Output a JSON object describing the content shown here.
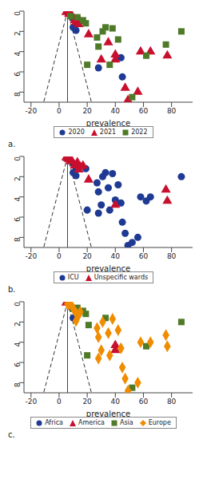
{
  "chart_data": [
    {
      "type": "scatter",
      "title": "a.",
      "x_label": "prevalence",
      "xlim": [
        -25,
        95
      ],
      "xticks": [
        -20,
        0,
        20,
        40,
        60,
        80
      ],
      "ylim": [
        0,
        9
      ],
      "yticks": [
        0,
        2,
        4,
        6,
        8
      ],
      "legend": "bottom",
      "series": [
        {
          "name": "2020",
          "color": "#1f3a93",
          "marker": "circle",
          "x": [
            6,
            10,
            10,
            12,
            44,
            45,
            28
          ],
          "y": [
            0.2,
            0.7,
            1.6,
            1.9,
            4.6,
            6.5,
            5.6
          ]
        },
        {
          "name": "2021",
          "color": "#c8102e",
          "marker": "triangle",
          "x": [
            5,
            7,
            9,
            11,
            12,
            15,
            14,
            21,
            30,
            35,
            40,
            47,
            49,
            56,
            58,
            65,
            77,
            40
          ],
          "y": [
            0.1,
            0.3,
            0.4,
            0.9,
            1.1,
            1.0,
            1.3,
            2.3,
            4.8,
            3.1,
            4.3,
            7.6,
            8.8,
            8.0,
            4.0,
            4.0,
            4.4,
            4.8
          ]
        },
        {
          "name": "2022",
          "color": "#4f7a28",
          "marker": "square",
          "x": [
            8,
            13,
            17,
            19,
            20,
            27,
            28,
            31,
            33,
            36,
            38,
            42,
            52,
            62,
            76,
            87
          ],
          "y": [
            0.5,
            0.6,
            0.9,
            1.2,
            5.3,
            2.6,
            3.5,
            2.0,
            1.6,
            5.3,
            1.7,
            2.8,
            8.5,
            4.4,
            3.3,
            2.0
          ]
        }
      ],
      "reference_lines": [
        {
          "x": [
            6,
            6
          ],
          "y": [
            0,
            9
          ],
          "line_style": "solid",
          "color": "#444444"
        },
        {
          "x": [
            6,
            -11
          ],
          "y": [
            0,
            9
          ],
          "line_style": "dashed",
          "color": "#333333"
        },
        {
          "x": [
            6,
            23
          ],
          "y": [
            0,
            9
          ],
          "line_style": "dashed",
          "color": "#333333"
        }
      ]
    },
    {
      "type": "scatter",
      "title": "b.",
      "x_label": "prevalence",
      "xlim": [
        -25,
        95
      ],
      "xticks": [
        -20,
        0,
        20,
        40,
        60,
        80
      ],
      "ylim": [
        0,
        9
      ],
      "yticks": [
        0,
        2,
        4,
        6,
        8
      ],
      "legend": "bottom",
      "series": [
        {
          "name": "ICU",
          "color": "#1f3a93",
          "marker": "circle",
          "x": [
            10,
            12,
            19,
            10,
            12,
            20,
            27,
            28,
            30,
            31,
            33,
            35,
            36,
            38,
            40,
            42,
            44,
            45,
            47,
            49,
            52,
            56,
            58,
            62,
            65,
            87,
            28
          ],
          "y": [
            0.7,
            1.1,
            1.2,
            1.6,
            1.9,
            5.3,
            2.6,
            3.5,
            4.8,
            2.0,
            1.6,
            3.1,
            5.3,
            1.7,
            4.3,
            2.8,
            4.6,
            6.5,
            7.6,
            8.8,
            8.5,
            8.0,
            4.0,
            4.4,
            4.0,
            2.0,
            5.6
          ]
        },
        {
          "name": "Unspecific wards",
          "color": "#c8102e",
          "marker": "triangle",
          "x": [
            5,
            6,
            7,
            8,
            9,
            11,
            13,
            15,
            17,
            14,
            21,
            76,
            77,
            40
          ],
          "y": [
            0.1,
            0.2,
            0.3,
            0.5,
            0.4,
            0.9,
            0.6,
            1.0,
            0.9,
            1.3,
            2.3,
            3.3,
            4.4,
            4.8
          ]
        }
      ],
      "reference_lines": [
        {
          "x": [
            6,
            6
          ],
          "y": [
            0,
            9
          ],
          "line_style": "solid",
          "color": "#444444"
        },
        {
          "x": [
            6,
            -11
          ],
          "y": [
            0,
            9
          ],
          "line_style": "dashed",
          "color": "#333333"
        },
        {
          "x": [
            6,
            23
          ],
          "y": [
            0,
            9
          ],
          "line_style": "dashed",
          "color": "#333333"
        }
      ]
    },
    {
      "type": "scatter",
      "title": "c.",
      "x_label": "prevalence",
      "xlim": [
        -25,
        95
      ],
      "xticks": [
        -20,
        0,
        20,
        40,
        60,
        80
      ],
      "ylim": [
        0,
        9
      ],
      "yticks": [
        0,
        2,
        4,
        6,
        8
      ],
      "legend": "bottom",
      "series": [
        {
          "name": "Africa",
          "color": "#1f3a93",
          "marker": "circle",
          "x": [
            8,
            10
          ],
          "y": [
            0.5,
            1.6
          ]
        },
        {
          "name": "America",
          "color": "#c8102e",
          "marker": "triangle",
          "x": [
            5,
            40,
            40
          ],
          "y": [
            0.1,
            4.3,
            4.8
          ]
        },
        {
          "name": "Asia",
          "color": "#4f7a28",
          "marker": "square",
          "x": [
            10,
            13,
            17,
            19,
            21,
            20,
            33,
            52,
            62,
            87
          ],
          "y": [
            0.7,
            0.6,
            0.9,
            1.2,
            2.3,
            5.3,
            1.6,
            8.5,
            4.4,
            2.0
          ]
        },
        {
          "name": "Europe",
          "color": "#f08c00",
          "marker": "diamond",
          "x": [
            6,
            7,
            9,
            11,
            12,
            15,
            12,
            14,
            27,
            28,
            30,
            31,
            35,
            36,
            38,
            42,
            44,
            45,
            47,
            49,
            56,
            58,
            65,
            76,
            77,
            28
          ],
          "y": [
            0.2,
            0.3,
            0.4,
            0.9,
            1.1,
            1.0,
            1.9,
            1.3,
            2.6,
            3.5,
            4.8,
            2.0,
            3.1,
            5.3,
            1.7,
            2.8,
            4.6,
            6.5,
            7.6,
            8.8,
            8.0,
            4.0,
            4.0,
            3.3,
            4.4,
            5.6
          ]
        }
      ],
      "reference_lines": [
        {
          "x": [
            6,
            6
          ],
          "y": [
            0,
            9
          ],
          "line_style": "solid",
          "color": "#444444"
        },
        {
          "x": [
            6,
            -11
          ],
          "y": [
            0,
            9
          ],
          "line_style": "dashed",
          "color": "#333333"
        },
        {
          "x": [
            6,
            23
          ],
          "y": [
            0,
            9
          ],
          "line_style": "dashed",
          "color": "#333333"
        }
      ]
    }
  ]
}
